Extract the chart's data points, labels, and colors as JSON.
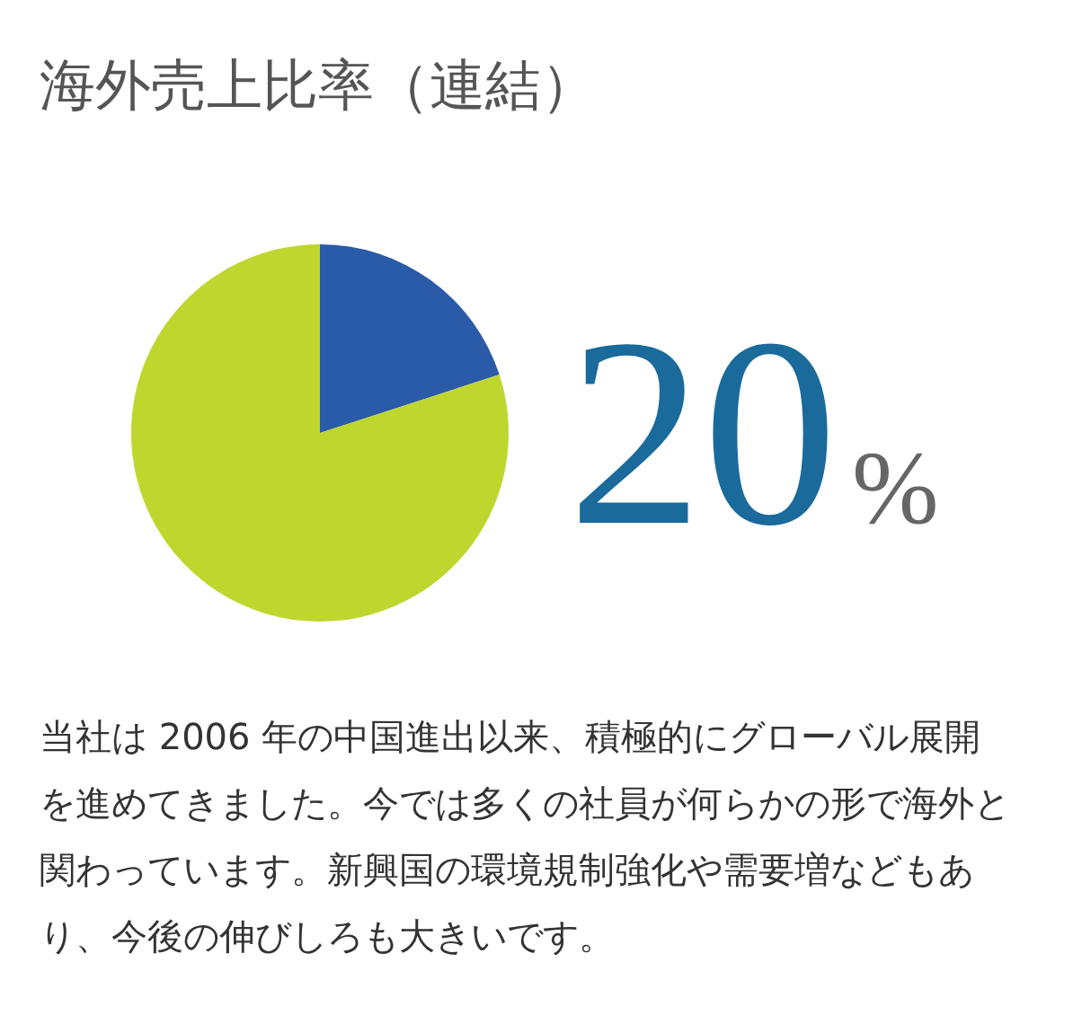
{
  "chart_data": {
    "type": "pie",
    "title": "海外売上比率（連結）",
    "categories": [
      null,
      null
    ],
    "values": [
      20,
      80
    ],
    "colors": [
      "#2a5ba8",
      "#bfd62f"
    ],
    "value_labels": [
      "20%",
      null
    ],
    "annotations": [
      "当社は 2006 年の中国進出以来、積極的にグローバル展開を進めてきました。今では多くの社員が何らかの形で海外と関わっています。新興国の環境規制強化や需要増などもあり、今後の伸びしろも大きいです。"
    ]
  }
}
